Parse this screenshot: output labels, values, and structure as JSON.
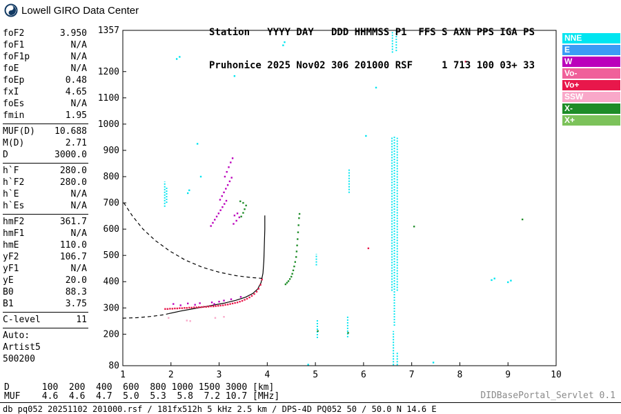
{
  "branding": {
    "title": "Lowell GIRO Data Center"
  },
  "station_header": {
    "line1": "Station   YYYY DAY   DDD HHMMSS P1  FFS S AXN PPS IGA PS",
    "line2": "Pruhonice 2025 Nov02 306 201000 RSF     1 713 100 03+ 33"
  },
  "parameters": {
    "groups": [
      [
        {
          "label": "foF2",
          "value": "3.950"
        },
        {
          "label": "foF1",
          "value": "N/A"
        },
        {
          "label": "foF1p",
          "value": "N/A"
        },
        {
          "label": "foE",
          "value": "N/A"
        },
        {
          "label": "foEp",
          "value": "0.48"
        },
        {
          "label": "fxI",
          "value": "4.65"
        },
        {
          "label": "foEs",
          "value": "N/A"
        },
        {
          "label": "fmin",
          "value": "1.95"
        }
      ],
      [
        {
          "label": "MUF(D)",
          "value": "10.688"
        },
        {
          "label": "M(D)",
          "value": "2.71"
        },
        {
          "label": "D",
          "value": "3000.0"
        }
      ],
      [
        {
          "label": "h`F",
          "value": "280.0"
        },
        {
          "label": "h`F2",
          "value": "280.0"
        },
        {
          "label": "h`E",
          "value": "N/A"
        },
        {
          "label": "h`Es",
          "value": "N/A"
        }
      ],
      [
        {
          "label": "hmF2",
          "value": "361.7"
        },
        {
          "label": "hmF1",
          "value": "N/A"
        },
        {
          "label": "hmE",
          "value": "110.0"
        },
        {
          "label": "yF2",
          "value": "106.7"
        },
        {
          "label": "yF1",
          "value": "N/A"
        },
        {
          "label": "yE",
          "value": "20.0"
        },
        {
          "label": "B0",
          "value": "88.3"
        },
        {
          "label": "B1",
          "value": "3.75"
        }
      ],
      [
        {
          "label": "C-level",
          "value": "11"
        }
      ]
    ],
    "auto_block": [
      "Auto:",
      "Artist5",
      "500200"
    ]
  },
  "legend": {
    "items": [
      {
        "label": "NNE",
        "color": "#00E5F0"
      },
      {
        "label": "E",
        "color": "#3B9BF5"
      },
      {
        "label": "W",
        "color": "#BB00BB"
      },
      {
        "label": "Vo-",
        "color": "#F0609A"
      },
      {
        "label": "Vo+",
        "color": "#E8174B"
      },
      {
        "label": "SSW",
        "color": "#F9A8C9"
      },
      {
        "label": "X-",
        "color": "#1E8C28"
      },
      {
        "label": "X+",
        "color": "#7CC25A"
      }
    ]
  },
  "chart_data": {
    "type": "scatter",
    "xlim": [
      1,
      10
    ],
    "ylim": [
      80,
      1357
    ],
    "x_unit": "MHz",
    "y_unit": "km",
    "grid": false,
    "legend_position": "right",
    "x_ticks": [
      1,
      2,
      3,
      4,
      5,
      6,
      7,
      8,
      9,
      10
    ],
    "y_ticks": [
      1357,
      1200,
      1100,
      1000,
      900,
      800,
      700,
      600,
      500,
      400,
      300,
      200,
      80
    ],
    "series": [
      {
        "name": "F-trace O-mode (Vo+)",
        "color": "#E8174B",
        "points": [
          [
            1.88,
            296
          ],
          [
            1.93,
            296
          ],
          [
            1.98,
            297
          ],
          [
            2.03,
            297
          ],
          [
            2.08,
            298
          ],
          [
            2.13,
            298
          ],
          [
            2.18,
            299
          ],
          [
            2.23,
            299
          ],
          [
            2.28,
            300
          ],
          [
            2.33,
            300
          ],
          [
            2.38,
            301
          ],
          [
            2.43,
            301
          ],
          [
            2.48,
            302
          ],
          [
            2.53,
            302
          ],
          [
            2.58,
            303
          ],
          [
            2.63,
            303
          ],
          [
            2.68,
            304
          ],
          [
            2.73,
            304
          ],
          [
            2.78,
            305
          ],
          [
            2.83,
            306
          ],
          [
            2.88,
            306
          ],
          [
            2.93,
            307
          ],
          [
            2.98,
            308
          ],
          [
            3.03,
            309
          ],
          [
            3.08,
            310
          ],
          [
            3.13,
            312
          ],
          [
            3.18,
            313
          ],
          [
            3.23,
            315
          ],
          [
            3.28,
            317
          ],
          [
            3.33,
            319
          ],
          [
            3.38,
            321
          ],
          [
            3.43,
            324
          ],
          [
            3.48,
            327
          ],
          [
            3.53,
            331
          ],
          [
            3.58,
            335
          ],
          [
            3.63,
            340
          ],
          [
            3.68,
            346
          ],
          [
            3.73,
            353
          ],
          [
            3.78,
            362
          ],
          [
            3.82,
            373
          ],
          [
            3.86,
            388
          ],
          [
            3.89,
            408
          ]
        ]
      },
      {
        "name": "F-trace spread (W)",
        "color": "#BB00BB",
        "points": [
          [
            2.05,
            315
          ],
          [
            2.2,
            310
          ],
          [
            2.35,
            317
          ],
          [
            2.5,
            312
          ],
          [
            2.6,
            318
          ],
          [
            2.85,
            321
          ],
          [
            2.9,
            315
          ],
          [
            3.0,
            324
          ],
          [
            3.1,
            328
          ],
          [
            3.25,
            333
          ],
          [
            3.45,
            342
          ]
        ]
      },
      {
        "name": "X-trace (X-)",
        "color": "#1E8C28",
        "points": [
          [
            4.38,
            390
          ],
          [
            4.41,
            396
          ],
          [
            4.44,
            402
          ],
          [
            4.47,
            410
          ],
          [
            4.5,
            419
          ],
          [
            4.52,
            430
          ],
          [
            4.54,
            443
          ],
          [
            4.56,
            458
          ],
          [
            4.58,
            475
          ],
          [
            4.6,
            494
          ],
          [
            4.61,
            515
          ],
          [
            4.62,
            538
          ],
          [
            4.63,
            562
          ],
          [
            4.64,
            588
          ],
          [
            4.65,
            615
          ],
          [
            4.66,
            642
          ],
          [
            4.67,
            658
          ]
        ]
      },
      {
        "name": "second-hop oblique (W)",
        "color": "#BB00BB",
        "points": [
          [
            2.83,
            612
          ],
          [
            2.87,
            624
          ],
          [
            2.91,
            636
          ],
          [
            2.95,
            648
          ],
          [
            2.99,
            660
          ],
          [
            3.03,
            672
          ],
          [
            3.07,
            684
          ],
          [
            3.11,
            696
          ],
          [
            3.15,
            708
          ],
          [
            3.02,
            712
          ],
          [
            3.06,
            726
          ],
          [
            3.1,
            740
          ],
          [
            3.14,
            754
          ],
          [
            3.18,
            768
          ],
          [
            3.22,
            782
          ],
          [
            3.26,
            796
          ],
          [
            3.12,
            800
          ],
          [
            3.16,
            818
          ],
          [
            3.2,
            836
          ],
          [
            3.24,
            854
          ],
          [
            3.28,
            870
          ],
          [
            3.3,
            620
          ],
          [
            3.36,
            632
          ],
          [
            3.42,
            645
          ],
          [
            3.32,
            652
          ],
          [
            3.38,
            660
          ]
        ]
      },
      {
        "name": "second-hop X (X-)",
        "color": "#1E8C28",
        "points": [
          [
            3.46,
            648
          ],
          [
            3.5,
            662
          ],
          [
            3.53,
            676
          ],
          [
            3.56,
            690
          ],
          [
            3.5,
            700
          ],
          [
            3.44,
            706
          ]
        ]
      },
      {
        "name": "scattered noise (NNE)",
        "color": "#00E5F0",
        "points": [
          [
            2.12,
            1248
          ],
          [
            2.18,
            1256
          ],
          [
            4.33,
            1300
          ],
          [
            4.36,
            1312
          ],
          [
            6.26,
            1139
          ],
          [
            3.32,
            1183
          ],
          [
            2.55,
            925
          ],
          [
            2.62,
            800
          ],
          [
            8.66,
            406
          ],
          [
            8.72,
            412
          ],
          [
            9.0,
            398
          ],
          [
            9.06,
            404
          ],
          [
            2.35,
            737
          ],
          [
            2.38,
            748
          ],
          [
            4.85,
            84
          ],
          [
            6.05,
            955
          ],
          [
            7.45,
            92
          ]
        ]
      },
      {
        "name": "scattered pink dots (SSW)",
        "color": "#F9A8C9",
        "points": [
          [
            2.33,
            252
          ],
          [
            2.4,
            250
          ],
          [
            2.92,
            262
          ],
          [
            3.1,
            266
          ],
          [
            1.95,
            262
          ]
        ]
      },
      {
        "name": "scattered red dots (Vo+)",
        "color": "#E8174B",
        "points": [
          [
            6.1,
            527
          ],
          [
            8.12,
            1238
          ]
        ]
      },
      {
        "name": "scattered green dots (X-)",
        "color": "#1E8C28",
        "points": [
          [
            9.3,
            637
          ],
          [
            7.05,
            610
          ],
          [
            5.68,
            205
          ],
          [
            5.05,
            212
          ]
        ]
      }
    ],
    "interference_columns": [
      {
        "f": 6.59,
        "h1": 365,
        "h2": 952
      },
      {
        "f": 6.64,
        "h1": 232,
        "h2": 955
      },
      {
        "f": 6.7,
        "h1": 365,
        "h2": 948
      },
      {
        "f": 6.6,
        "h1": 1272,
        "h2": 1357
      },
      {
        "f": 6.68,
        "h1": 1278,
        "h2": 1357
      },
      {
        "f": 6.62,
        "h1": 82,
        "h2": 212
      },
      {
        "f": 6.7,
        "h1": 82,
        "h2": 130
      },
      {
        "f": 5.7,
        "h1": 738,
        "h2": 832
      },
      {
        "f": 5.67,
        "h1": 188,
        "h2": 268
      },
      {
        "f": 5.02,
        "h1": 462,
        "h2": 506
      },
      {
        "f": 5.04,
        "h1": 185,
        "h2": 258
      },
      {
        "f": 1.87,
        "h1": 685,
        "h2": 782
      },
      {
        "f": 1.91,
        "h1": 700,
        "h2": 762
      }
    ],
    "curves": [
      {
        "name": "true-height-profile",
        "style": "solid",
        "color": "#000000",
        "points": [
          [
            1.95,
            278
          ],
          [
            2.2,
            288
          ],
          [
            2.5,
            298
          ],
          [
            2.8,
            308
          ],
          [
            3.1,
            318
          ],
          [
            3.35,
            329
          ],
          [
            3.55,
            341
          ],
          [
            3.7,
            355
          ],
          [
            3.8,
            372
          ],
          [
            3.87,
            396
          ],
          [
            3.91,
            432
          ],
          [
            3.93,
            480
          ],
          [
            3.94,
            540
          ],
          [
            3.95,
            600
          ],
          [
            3.95,
            652
          ]
        ]
      },
      {
        "name": "transmission-curve",
        "style": "dashed",
        "color": "#000000",
        "points": [
          [
            1.02,
            700
          ],
          [
            1.2,
            650
          ],
          [
            1.42,
            600
          ],
          [
            1.68,
            556
          ],
          [
            1.98,
            516
          ],
          [
            2.3,
            482
          ],
          [
            2.65,
            455
          ],
          [
            3.0,
            436
          ],
          [
            3.35,
            423
          ],
          [
            3.65,
            416
          ],
          [
            3.92,
            412
          ]
        ]
      },
      {
        "name": "profile-model-extension",
        "style": "dashed",
        "color": "#000000",
        "points": [
          [
            1.0,
            261
          ],
          [
            1.3,
            263
          ],
          [
            1.6,
            268
          ],
          [
            1.85,
            274
          ],
          [
            1.95,
            278
          ]
        ]
      }
    ]
  },
  "distance_muf_table": {
    "row1_label": "D",
    "row1_values": [
      "100",
      "200",
      "400",
      "600",
      "800",
      "1000",
      "1500",
      "3000"
    ],
    "row1_unit": "[km]",
    "row2_label": "MUF",
    "row2_values": [
      "4.6",
      "4.6",
      "4.7",
      "5.0",
      "5.3",
      "5.8",
      "7.2",
      "10.7"
    ],
    "row2_unit": "[MHz]"
  },
  "footer": {
    "status": "db pq052 20251102 201000.rsf / 181fx512h 5 kHz 2.5 km / DPS-4D PQ052 50 / 50.0 N 14.6 E",
    "servlet": "DIDBasePortal_Servlet 0.1"
  }
}
